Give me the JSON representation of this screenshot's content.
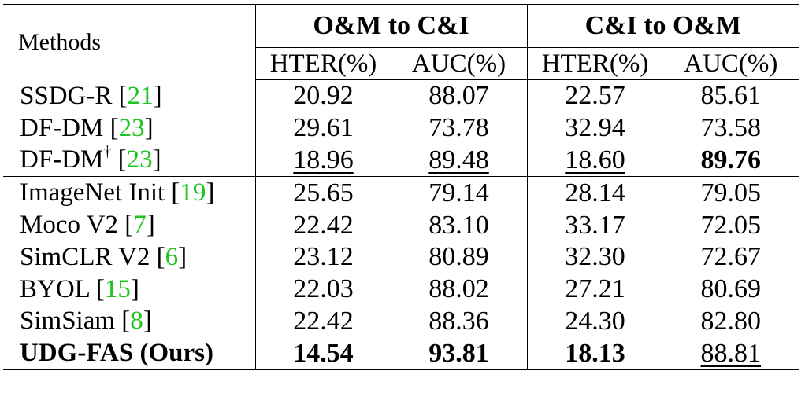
{
  "header": {
    "methods_label": "Methods",
    "group1_label": "O&M to C&I",
    "group2_label": "C&I to O&M",
    "hter_label": "HTER(%)",
    "auc_label": "AUC(%)"
  },
  "rows": [
    {
      "name": "SSDG-R [",
      "ref": "21",
      "close": "]",
      "sup": "",
      "values": [
        "20.92",
        "88.07",
        "22.57",
        "85.61"
      ],
      "styles": [
        "",
        "",
        "",
        ""
      ]
    },
    {
      "name": "DF-DM [",
      "ref": "23",
      "close": "]",
      "sup": "",
      "values": [
        "29.61",
        "73.78",
        "32.94",
        "73.58"
      ],
      "styles": [
        "",
        "",
        "",
        ""
      ]
    },
    {
      "name": "DF-DM",
      "ref": "23",
      "close": "]",
      "sup": "†",
      "values": [
        "18.96",
        "89.48",
        "18.60",
        "89.76"
      ],
      "styles": [
        "underline",
        "underline",
        "underline",
        "bold"
      ]
    },
    {
      "name": "ImageNet Init [",
      "ref": "19",
      "close": "]",
      "sup": "",
      "values": [
        "25.65",
        "79.14",
        "28.14",
        "79.05"
      ],
      "styles": [
        "",
        "",
        "",
        ""
      ]
    },
    {
      "name": "Moco V2 [",
      "ref": "7",
      "close": "]",
      "sup": "",
      "values": [
        "22.42",
        "83.10",
        "33.17",
        "72.05"
      ],
      "styles": [
        "",
        "",
        "",
        ""
      ]
    },
    {
      "name": "SimCLR V2 [",
      "ref": "6",
      "close": "]",
      "sup": "",
      "values": [
        "23.12",
        "80.89",
        "32.30",
        "72.67"
      ],
      "styles": [
        "",
        "",
        "",
        ""
      ]
    },
    {
      "name": "BYOL [",
      "ref": "15",
      "close": "]",
      "sup": "",
      "values": [
        "22.03",
        "88.02",
        "27.21",
        "80.69"
      ],
      "styles": [
        "",
        "",
        "",
        ""
      ]
    },
    {
      "name": "SimSiam [",
      "ref": "8",
      "close": "]",
      "sup": "",
      "values": [
        "22.42",
        "88.36",
        "24.30",
        "82.80"
      ],
      "styles": [
        "",
        "",
        "",
        ""
      ]
    },
    {
      "name": "UDG-FAS (Ours)",
      "ref": "",
      "close": "",
      "sup": "",
      "values": [
        "14.54",
        "93.81",
        "18.13",
        "88.81"
      ],
      "styles": [
        "bold",
        "bold",
        "bold",
        "underline"
      ],
      "name_bold": true
    }
  ],
  "separator_after_row": 2
}
